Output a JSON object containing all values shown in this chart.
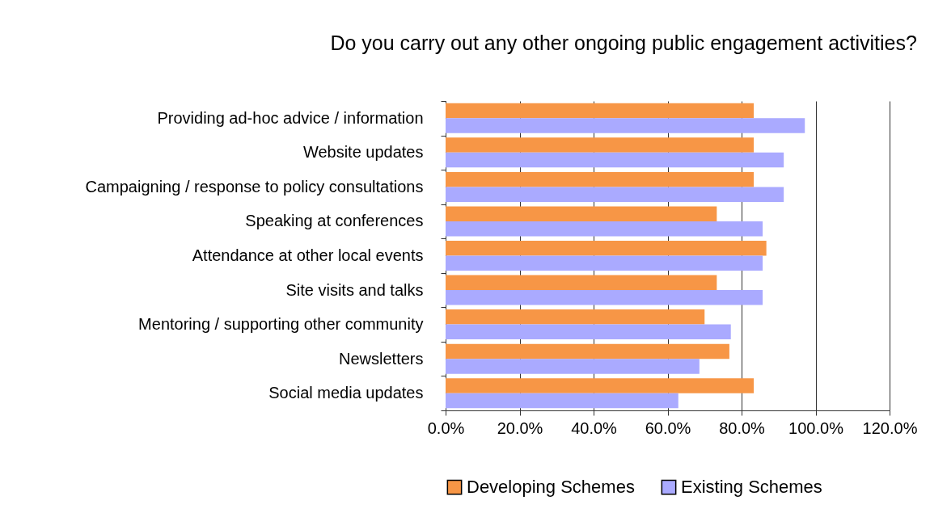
{
  "chart_data": {
    "type": "bar",
    "orientation": "horizontal",
    "title": "Do you carry out any other ongoing public engagement activities?",
    "categories": [
      "Providing ad-hoc advice / information",
      "Website updates",
      "Campaigning / response to policy consultations",
      "Speaking at conferences",
      "Attendance at other local events",
      "Site visits and talks",
      "Mentoring / supporting other community",
      "Newsletters",
      "Social media updates"
    ],
    "series": [
      {
        "name": "Developing Schemes",
        "color": "#f79646",
        "values": [
          83.3,
          83.3,
          83.3,
          73.3,
          86.7,
          73.3,
          70.0,
          76.7,
          83.3
        ]
      },
      {
        "name": "Existing Schemes",
        "color": "#aaaaff",
        "values": [
          97.1,
          91.4,
          91.4,
          85.7,
          85.7,
          85.7,
          77.1,
          68.6,
          62.9
        ]
      }
    ],
    "xlim": [
      0,
      120
    ],
    "xticks": [
      {
        "value": 0,
        "label": "0.0%"
      },
      {
        "value": 20,
        "label": "20.0%"
      },
      {
        "value": 40,
        "label": "40.0%"
      },
      {
        "value": 60,
        "label": "60.0%"
      },
      {
        "value": 80,
        "label": "80.0%"
      },
      {
        "value": 100,
        "label": "100.0%"
      },
      {
        "value": 120,
        "label": "120.0%"
      }
    ],
    "grid": "x",
    "legend": "bottom"
  }
}
